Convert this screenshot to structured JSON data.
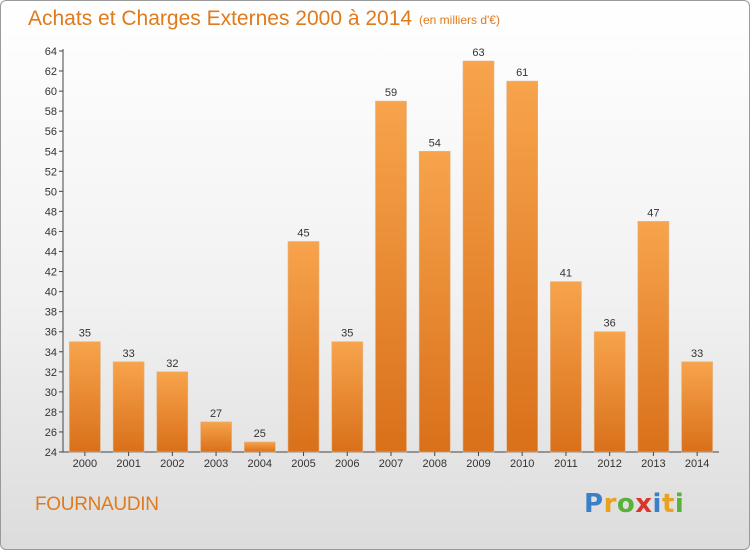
{
  "chart_data": {
    "type": "bar",
    "title": "Achats et Charges Externes 2000 à 2014",
    "subtitle": "(en milliers d'€)",
    "categories": [
      "2000",
      "2001",
      "2002",
      "2003",
      "2004",
      "2005",
      "2006",
      "2007",
      "2008",
      "2009",
      "2010",
      "2011",
      "2012",
      "2013",
      "2014"
    ],
    "values": [
      35,
      33,
      32,
      27,
      25,
      45,
      35,
      59,
      54,
      63,
      61,
      41,
      36,
      47,
      33
    ],
    "ylim": [
      24,
      64
    ],
    "yticks": [
      24,
      26,
      28,
      30,
      32,
      34,
      36,
      38,
      40,
      42,
      44,
      46,
      48,
      50,
      52,
      54,
      56,
      58,
      60,
      62,
      64
    ],
    "xlabel": "",
    "ylabel": "",
    "grid": false,
    "bar_color_light": "#f7a44c",
    "bar_color_dark": "#d9701a",
    "accent_color": "#e07a1c"
  },
  "footer": {
    "place": "FOURNAUDIN",
    "logo_letters": [
      {
        "ch": "P",
        "color": "#3a7fc8"
      },
      {
        "ch": "r",
        "color": "#e8a21e"
      },
      {
        "ch": "o",
        "color": "#59b13a"
      },
      {
        "ch": "x",
        "color": "#d8352c"
      },
      {
        "ch": "i",
        "color": "#3a7fc8"
      },
      {
        "ch": "t",
        "color": "#e8a21e"
      },
      {
        "ch": "i",
        "color": "#59b13a"
      }
    ]
  }
}
